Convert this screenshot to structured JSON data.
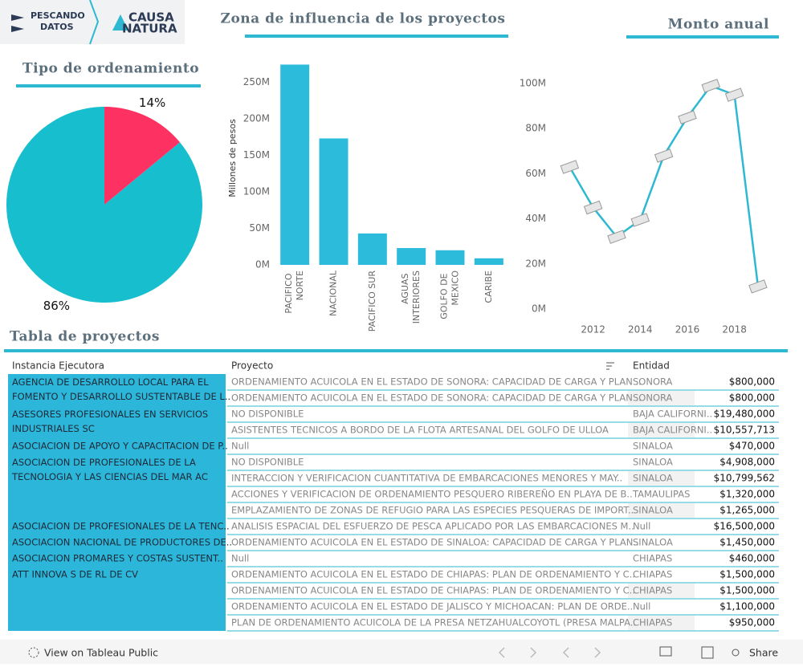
{
  "header": {
    "logo_left": [
      "PESCANDO",
      "DATOS"
    ],
    "logo_right": [
      "CAUSA",
      "NATURA"
    ]
  },
  "chart_data": [
    {
      "type": "pie",
      "title": "Tipo de ordenamiento",
      "values": [
        14,
        86
      ],
      "value_labels": [
        "14%",
        "86%"
      ],
      "colors": [
        "#fe3262",
        "#17bfce"
      ]
    },
    {
      "type": "bar",
      "title": "Zona de influencia de los proyectos",
      "y_label": "Millones de pesos",
      "categories": [
        "PACIFICO NORTE",
        "NACIONAL",
        "PACIFICO SUR",
        "AGUAS INTERIORES",
        "GOLFO DE MEXICO",
        "CARIBE"
      ],
      "values": [
        274000000,
        173000000,
        43000000,
        23000000,
        20000000,
        9000000
      ],
      "color": "#2dbbdb",
      "ylim": [
        0,
        280000000
      ],
      "yticks": [
        {
          "value": 0,
          "label": "0M"
        },
        {
          "value": 50000000,
          "label": "50M"
        },
        {
          "value": 100000000,
          "label": "100M"
        },
        {
          "value": 150000000,
          "label": "150M"
        },
        {
          "value": 200000000,
          "label": "200M"
        },
        {
          "value": 250000000,
          "label": "250M"
        }
      ]
    },
    {
      "type": "line",
      "title": "Monto anual",
      "x": [
        2011,
        2012,
        2013,
        2014,
        2015,
        2016,
        2017,
        2018,
        2019
      ],
      "series": [
        {
          "color": "#2eb8d2",
          "values": [
            63000000,
            45000000,
            32000000,
            39500000,
            68000000,
            85000000,
            99000000,
            95000000,
            10000000
          ]
        }
      ],
      "xlim": [
        2010,
        2020.4
      ],
      "xticks": [
        2012,
        2014,
        2016,
        2018
      ],
      "ylim": [
        0,
        105000000
      ],
      "yticks": [
        {
          "value": 0,
          "label": "0M"
        },
        {
          "value": 20000000,
          "label": "20M"
        },
        {
          "value": 40000000,
          "label": "40M"
        },
        {
          "value": 60000000,
          "label": "60M"
        },
        {
          "value": 80000000,
          "label": "80M"
        },
        {
          "value": 100000000,
          "label": "100M"
        }
      ]
    }
  ],
  "table": {
    "title": "Tabla de proyectos",
    "columns": [
      "Instancia Ejecutora",
      "Proyecto",
      "Entidad"
    ],
    "groups": [
      {
        "instancia": "AGENCIA DE DESARROLLO LOCAL PARA EL FOMENTO Y DESARROLLO SUSTENTABLE DE L..",
        "rows": [
          [
            "ORDENAMIENTO ACUICOLA EN EL ESTADO DE SONORA: CAPACIDAD DE CARGA Y PLAN ..",
            "SONORA",
            "$800,000"
          ],
          [
            "ORDENAMIENTO ACUICOLA EN EL ESTADO DE SONORA: CAPACIDAD DE CARGA Y PLAN ..",
            "SONORA",
            "$800,000"
          ]
        ]
      },
      {
        "instancia": "ASESORES PROFESIONALES EN SERVICIOS INDUSTRIALES SC",
        "rows": [
          [
            "NO DISPONIBLE",
            "BAJA CALIFORNI..",
            "$19,480,000"
          ],
          [
            "ASISTENTES TECNICOS A BORDO DE LA FLOTA ARTESANAL DEL GOLFO DE ULLOA",
            "BAJA CALIFORNI..",
            "$10,557,713"
          ]
        ]
      },
      {
        "instancia": "ASOCIACION DE APOYO Y CAPACITACION DE P..",
        "rows": [
          [
            "Null",
            "SINALOA",
            "$470,000"
          ]
        ]
      },
      {
        "instancia": "ASOCIACION DE PROFESIONALES DE LA TECNOLOGIA Y LAS CIENCIAS DEL MAR AC",
        "rows": [
          [
            "NO DISPONIBLE",
            "SINALOA",
            "$4,908,000"
          ],
          [
            "INTERACCION Y VERIFICACION CUANTITATIVA DE EMBARCACIONES MENORES Y MAY..",
            "SINALOA",
            "$10,799,562"
          ],
          [
            "ACCIONES Y VERIFICACION DE ORDENAMIENTO PESQUERO RIBEREÑO EN PLAYA DE B..",
            "TAMAULIPAS",
            "$1,320,000"
          ],
          [
            "EMPLAZAMIENTO DE ZONAS DE REFUGIO PARA LAS ESPECIES PESQUERAS DE IMPORT..",
            "SINALOA",
            "$1,265,000"
          ]
        ]
      },
      {
        "instancia": "ASOCIACION DE PROFESIONALES DE LA TENC..",
        "rows": [
          [
            "ANALISIS ESPACIAL DEL ESFUERZO DE PESCA APLICADO POR LAS EMBARCACIONES M..",
            "Null",
            "$16,500,000"
          ]
        ]
      },
      {
        "instancia": "ASOCIACION NACIONAL DE PRODUCTORES DE..",
        "rows": [
          [
            "ORDENAMIENTO ACUICOLA EN EL ESTADO DE SINALOA: CAPACIDAD DE CARGA Y PLAN..",
            "SINALOA",
            "$1,450,000"
          ]
        ]
      },
      {
        "instancia": "ASOCIACION PROMARES Y COSTAS SUSTENT..",
        "rows": [
          [
            "Null",
            "CHIAPAS",
            "$460,000"
          ]
        ]
      },
      {
        "instancia": "ATT INNOVA S DE RL DE CV",
        "rows": [
          [
            "ORDENAMIENTO ACUICOLA EN EL ESTADO DE CHIAPAS: PLAN DE ORDENAMIENTO Y C..",
            "CHIAPAS",
            "$1,500,000"
          ],
          [
            "ORDENAMIENTO ACUICOLA EN EL ESTADO DE CHIAPAS: PLAN DE ORDENAMIENTO Y C..",
            "CHIAPAS",
            "$1,500,000"
          ],
          [
            "ORDENAMIENTO ACUICOLA EN EL ESTADO DE JALISCO Y MICHOACAN: PLAN DE ORDE..",
            "Null",
            "$1,100,000"
          ],
          [
            "PLAN DE ORDENAMIENTO ACUICOLA DE LA PRESA NETZAHUALCOYOTL (PRESA MALPA..",
            "CHIAPAS",
            "$950,000"
          ]
        ]
      }
    ]
  },
  "toolbar": {
    "view": "View on Tableau Public",
    "share": "Share"
  }
}
